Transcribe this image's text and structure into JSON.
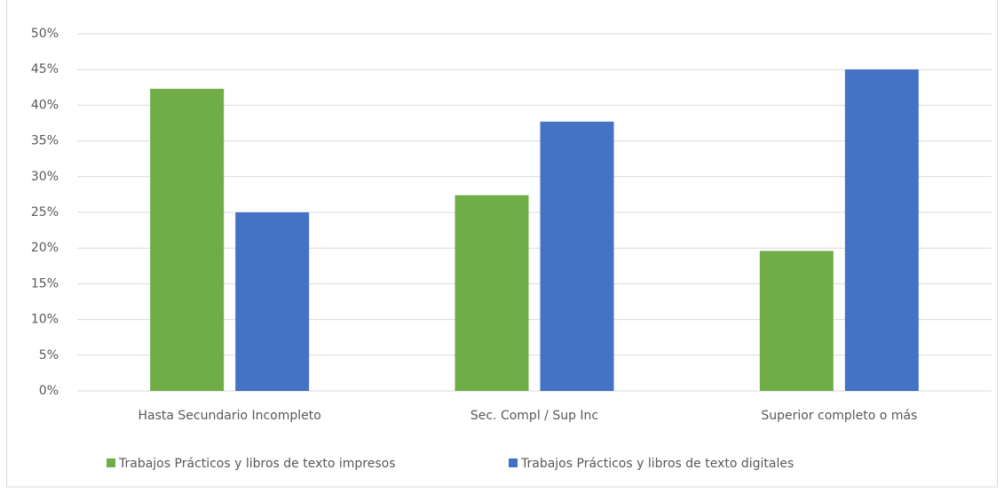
{
  "chart_data": {
    "type": "bar",
    "categories": [
      "Hasta Secundario Incompleto",
      "Sec. Compl / Sup Inc",
      "Superior completo o más"
    ],
    "series": [
      {
        "name": "Trabajos Prácticos y libros de texto impresos",
        "color": "#70ad47",
        "values": [
          42.3,
          27.4,
          19.6
        ]
      },
      {
        "name": "Trabajos Prácticos y libros de texto digitales",
        "color": "#4472c4",
        "values": [
          25.0,
          37.7,
          45.0
        ]
      }
    ],
    "ylim": [
      0,
      50
    ],
    "yticks": [
      {
        "value": 0,
        "label": "0%"
      },
      {
        "value": 5,
        "label": "5%"
      },
      {
        "value": 10,
        "label": "10%"
      },
      {
        "value": 15,
        "label": "15%"
      },
      {
        "value": 20,
        "label": "20%"
      },
      {
        "value": 25,
        "label": "25%"
      },
      {
        "value": 30,
        "label": "30%"
      },
      {
        "value": 35,
        "label": "35%"
      },
      {
        "value": 40,
        "label": "40%"
      },
      {
        "value": 45,
        "label": "45%"
      },
      {
        "value": 50,
        "label": "50%"
      }
    ],
    "grid": true,
    "legend": "bottom"
  }
}
